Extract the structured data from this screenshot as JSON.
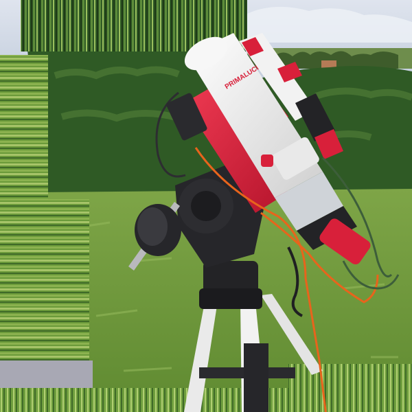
{
  "photo": {
    "subject": "telescope-on-equatorial-mount",
    "brand_text": "PRIMALUCE",
    "colors": {
      "sky": "#c9d3e2",
      "sky_top": "#dfe4ee",
      "hedge": "#2f5a25",
      "hedge_light": "#4f7a36",
      "lawn": "#6f9a3c",
      "lawn_light": "#86ac4c",
      "tube_white": "#eeeeec",
      "accent_red": "#d8203a",
      "mount_black": "#232326",
      "tripod_white": "#eaeaea",
      "cable_orange": "#e8641c",
      "cable_green": "#3d5e3a"
    }
  }
}
